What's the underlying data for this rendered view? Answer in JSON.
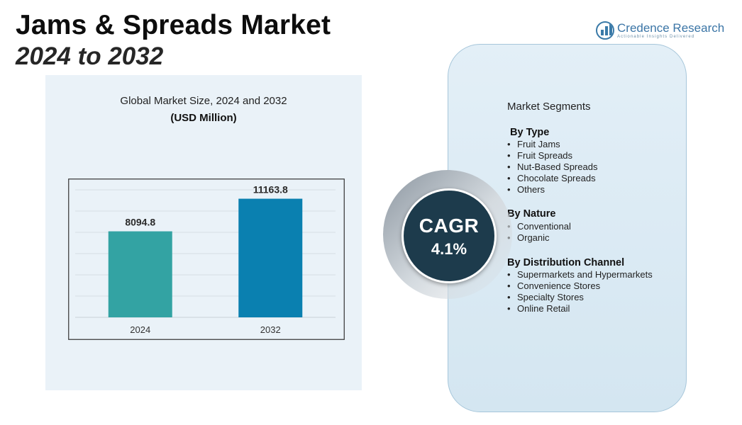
{
  "header": {
    "title": "Jams & Spreads Market",
    "subtitle": "2024 to 2032"
  },
  "logo": {
    "name": "Credence Research",
    "tagline": "Actionable Insights Delivered",
    "color": "#3b75a6"
  },
  "chart_data": {
    "type": "bar",
    "title": "Global Market Size, 2024 and 2032",
    "unit_label": "(USD Million)",
    "categories": [
      "2024",
      "2032"
    ],
    "values": [
      8094.8,
      11163.8
    ],
    "value_labels": [
      "8094.8",
      "11163.8"
    ],
    "colors": [
      "#33a3a3",
      "#0a80b0"
    ],
    "ylim": [
      0,
      12000
    ],
    "xlabel": "",
    "ylabel": "",
    "grid": true
  },
  "cagr": {
    "label": "CAGR",
    "value": "4.1%"
  },
  "segments": {
    "heading": "Market Segments",
    "groups": [
      {
        "title": "By Type",
        "items": [
          "Fruit Jams",
          "Fruit Spreads",
          "Nut-Based Spreads",
          "Chocolate Spreads",
          "Others"
        ]
      },
      {
        "title": "By Nature",
        "items": [
          "Conventional",
          "Organic"
        ]
      },
      {
        "title": "By Distribution Channel",
        "items": [
          "Supermarkets and Hypermarkets",
          "Convenience Stores",
          "Specialty Stores",
          "Online Retail"
        ]
      }
    ]
  }
}
